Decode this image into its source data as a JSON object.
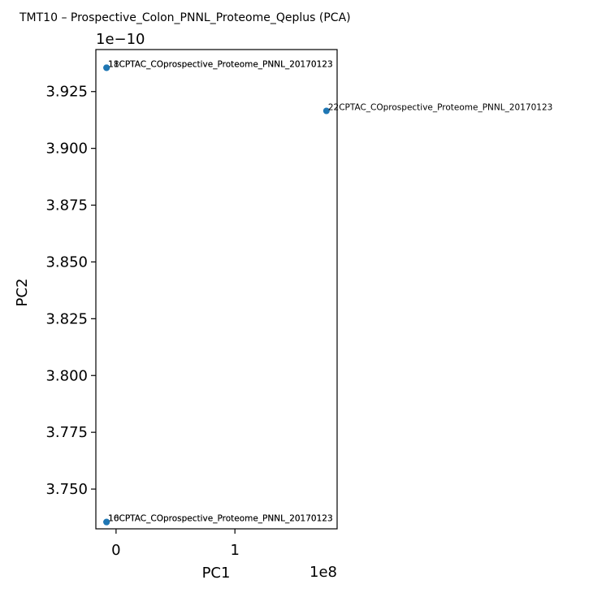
{
  "chart_data": {
    "type": "scatter",
    "title": "TMT10 – Prospective_Colon_PNNL_Proteome_Qeplus (PCA)",
    "xlabel": "PC1",
    "ylabel": "PC2",
    "x_multiplier_label": "1e8",
    "y_multiplier_label": "1e−10",
    "xlim": [
      -0.17,
      1.86
    ],
    "ylim": [
      3.7325,
      3.9435
    ],
    "x_ticks": [
      0,
      1
    ],
    "x_tick_labels": [
      "0",
      "1"
    ],
    "y_ticks": [
      3.75,
      3.775,
      3.8,
      3.825,
      3.85,
      3.875,
      3.9,
      3.925
    ],
    "y_tick_labels": [
      "3.750",
      "3.775",
      "3.800",
      "3.825",
      "3.850",
      "3.875",
      "3.900",
      "3.925"
    ],
    "marker_color": "#1f77b4",
    "points": [
      {
        "x": -0.08,
        "y": 3.9355,
        "label": "18CPTAC_COprospective_Proteome_PNNL_20170123"
      },
      {
        "x": -0.08,
        "y": 3.9355,
        "label": "11CPTAC_COprospective_Proteome_PNNL_20170123"
      },
      {
        "x": 1.77,
        "y": 3.9165,
        "label": "22CPTAC_COprospective_Proteome_PNNL_20170123"
      },
      {
        "x": -0.08,
        "y": 3.7355,
        "label": "16CPTAC_COprospective_Proteome_PNNL_20170123"
      },
      {
        "x": -0.08,
        "y": 3.7355,
        "label": "10CPTAC_COprospective_Proteome_PNNL_20170123"
      }
    ]
  }
}
